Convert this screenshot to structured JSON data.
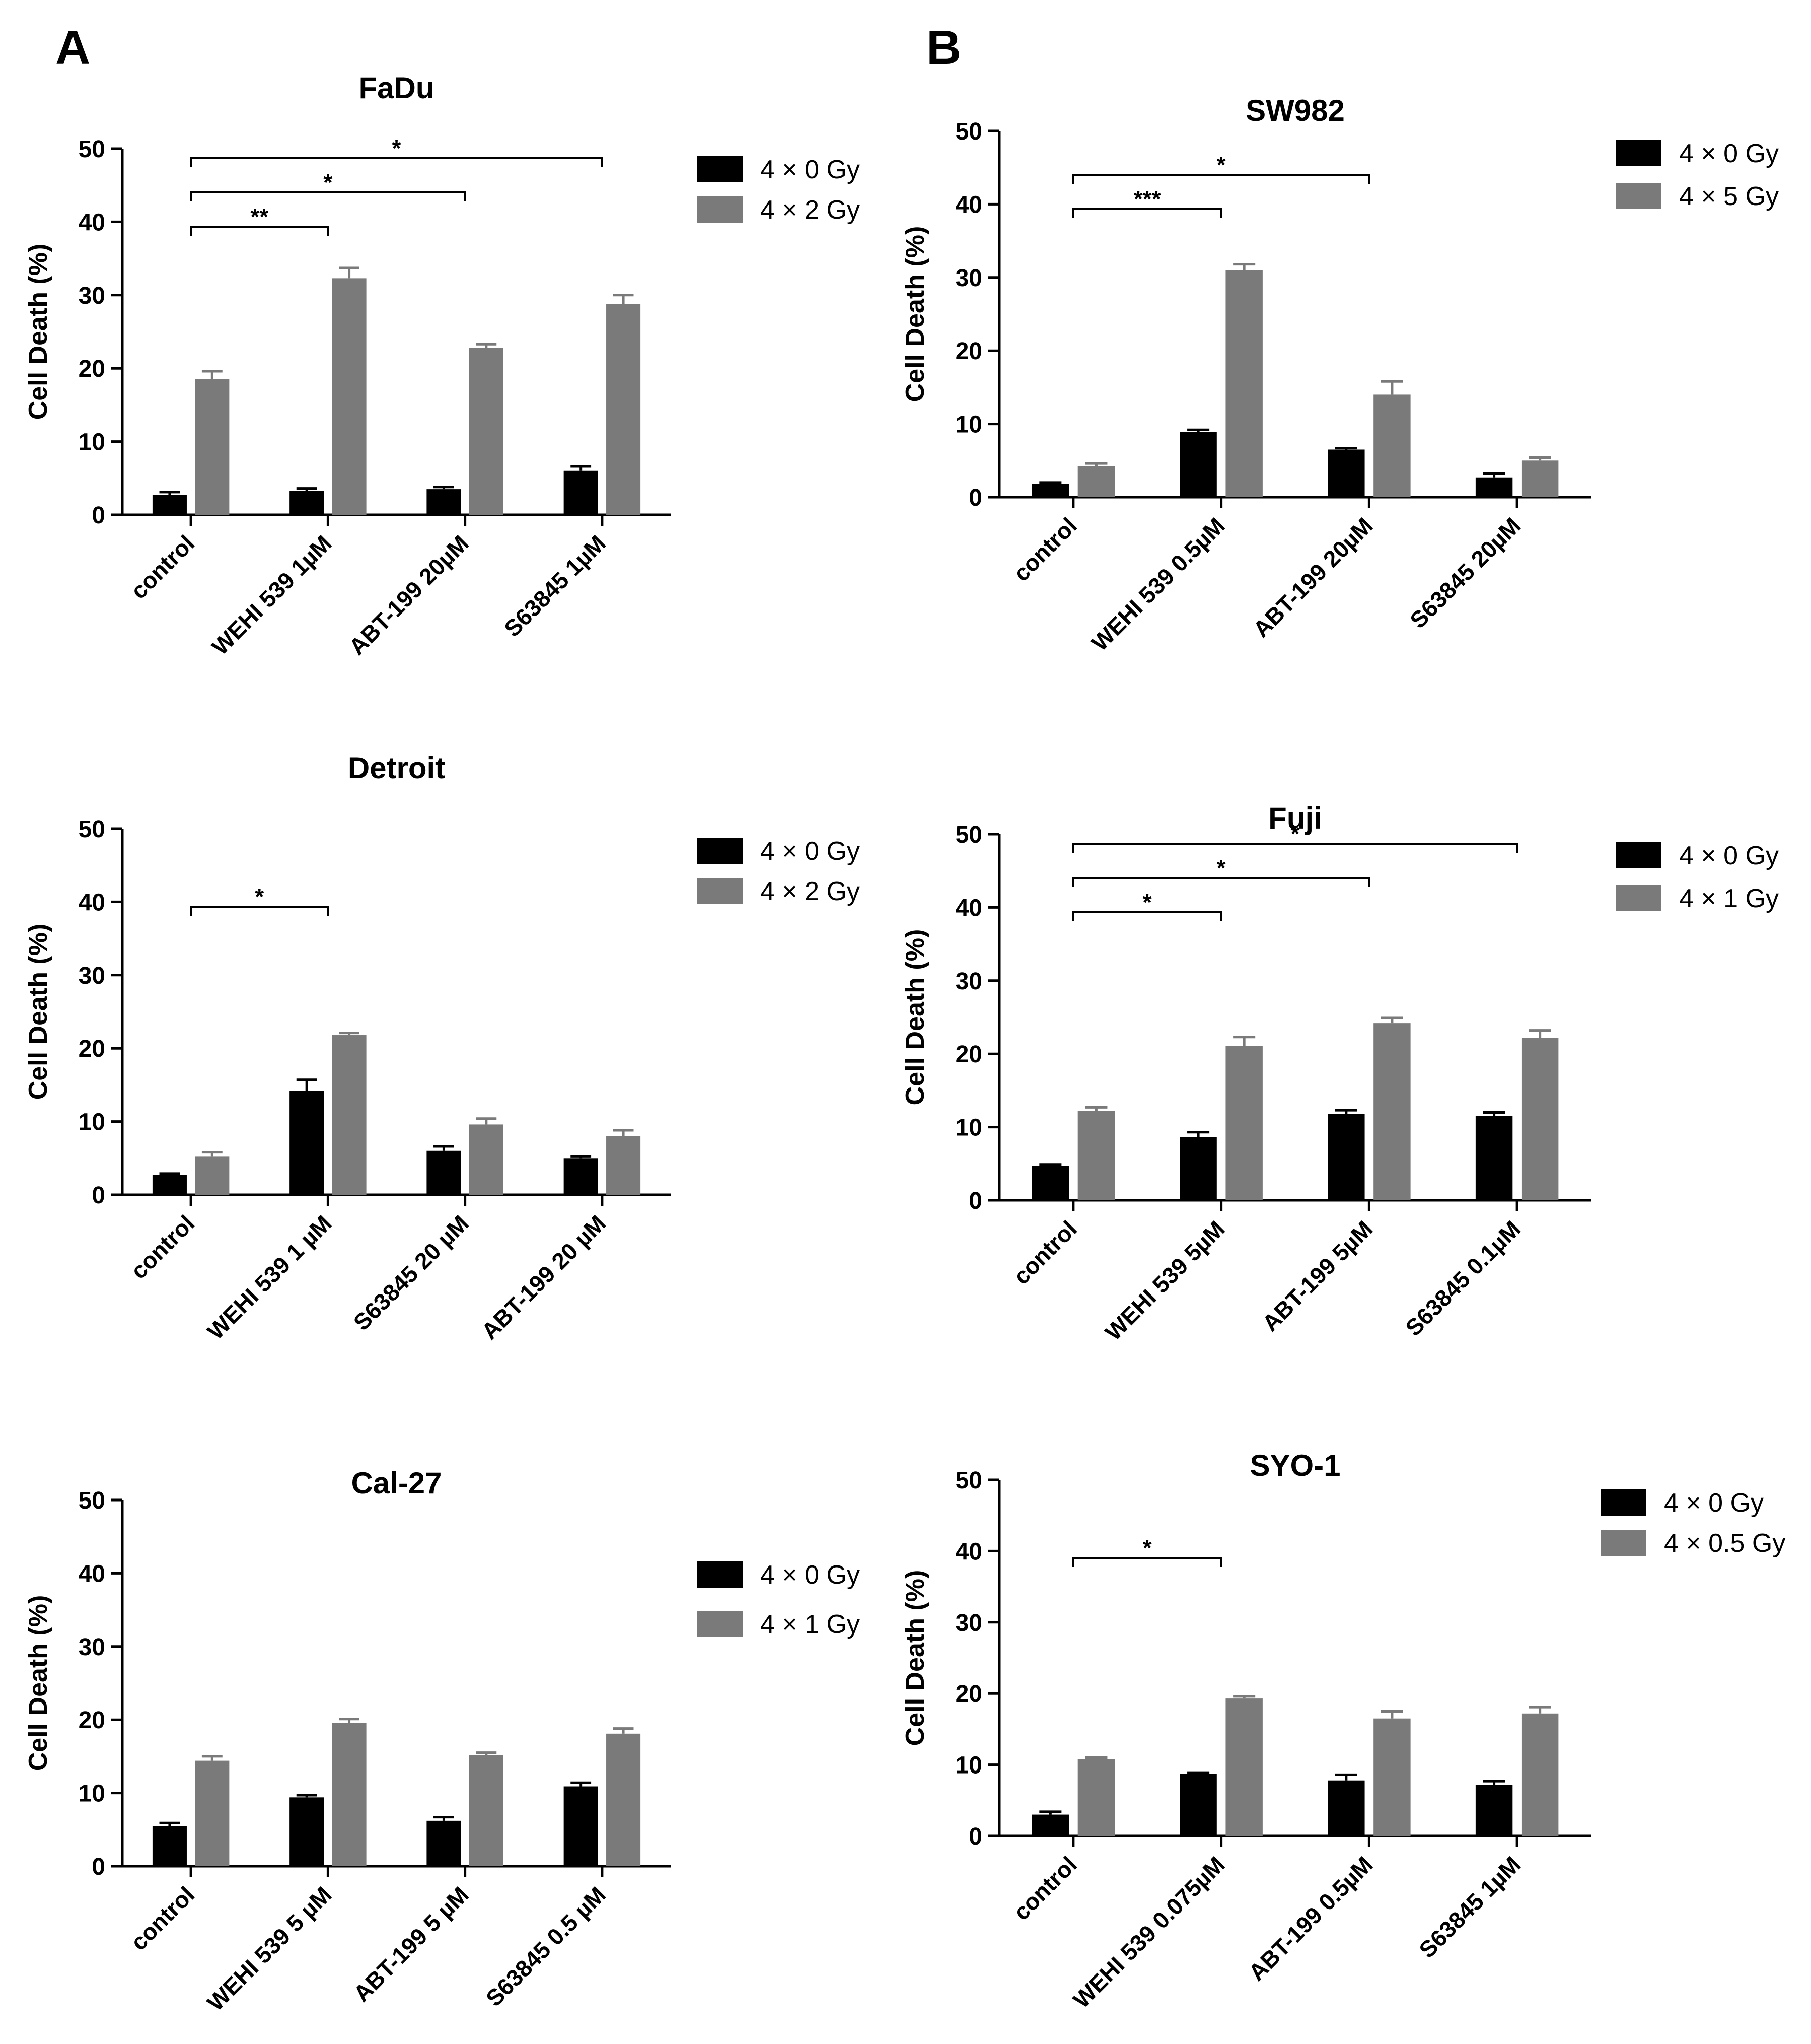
{
  "panel_labels": [
    "A",
    "B"
  ],
  "colors": {
    "dark": "#000000",
    "gray": "#7a7a7a",
    "axis": "#000000"
  },
  "chart_data": [
    {
      "panel": "A",
      "type": "bar",
      "title": "FaDu",
      "ylabel": "Cell Death (%)",
      "xlabel": "",
      "ylim": [
        0,
        50
      ],
      "yticks": [
        0,
        10,
        20,
        30,
        40,
        50
      ],
      "categories": [
        "control",
        "WEHI 539 1µM",
        "ABT-199 20µM",
        "S63845 1µM"
      ],
      "series": [
        {
          "name": "4 × 0 Gy",
          "color": "#000000",
          "values": [
            2.7,
            3.3,
            3.5,
            6.0
          ],
          "errors": [
            0.4,
            0.3,
            0.3,
            0.6
          ]
        },
        {
          "name": "4 × 2 Gy",
          "color": "#7a7a7a",
          "values": [
            18.5,
            32.3,
            22.8,
            28.8
          ],
          "errors": [
            1.1,
            1.4,
            0.5,
            1.2
          ]
        }
      ],
      "significance": [
        {
          "from": 0,
          "to": 1,
          "label": "**"
        },
        {
          "from": 0,
          "to": 2,
          "label": "*"
        },
        {
          "from": 0,
          "to": 3,
          "label": "*"
        }
      ]
    },
    {
      "panel": "B",
      "type": "bar",
      "title": "SW982",
      "ylabel": "Cell Death (%)",
      "xlabel": "",
      "ylim": [
        0,
        50
      ],
      "yticks": [
        0,
        10,
        20,
        30,
        40,
        50
      ],
      "categories": [
        "control",
        "WEHI 539 0.5µM",
        "ABT-199 20µM",
        "S63845 20µM"
      ],
      "series": [
        {
          "name": "4 × 0 Gy",
          "color": "#000000",
          "values": [
            1.8,
            8.9,
            6.5,
            2.7
          ],
          "errors": [
            0.2,
            0.3,
            0.2,
            0.5
          ]
        },
        {
          "name": "4 × 5 Gy",
          "color": "#7a7a7a",
          "values": [
            4.2,
            31.0,
            14.0,
            5.0
          ],
          "errors": [
            0.4,
            0.8,
            1.8,
            0.4
          ]
        }
      ],
      "significance": [
        {
          "from": 0,
          "to": 1,
          "label": "***"
        },
        {
          "from": 0,
          "to": 2,
          "label": "*"
        }
      ]
    },
    {
      "panel": "A",
      "type": "bar",
      "title": "Detroit",
      "ylabel": "Cell Death (%)",
      "xlabel": "",
      "ylim": [
        0,
        50
      ],
      "yticks": [
        0,
        10,
        20,
        30,
        40,
        50
      ],
      "categories": [
        "control",
        "WEHI 539 1 µM",
        "S63845 20 µM",
        "ABT-199 20 µM"
      ],
      "series": [
        {
          "name": "4 × 0 Gy",
          "color": "#000000",
          "values": [
            2.7,
            14.2,
            6.0,
            5.0
          ],
          "errors": [
            0.2,
            1.5,
            0.6,
            0.2
          ]
        },
        {
          "name": "4 × 2 Gy",
          "color": "#7a7a7a",
          "values": [
            5.2,
            21.8,
            9.6,
            8.0
          ],
          "errors": [
            0.6,
            0.3,
            0.8,
            0.8
          ]
        }
      ],
      "significance": [
        {
          "from": 0,
          "to": 1,
          "label": "*"
        }
      ]
    },
    {
      "panel": "B",
      "type": "bar",
      "title": "Fuji",
      "ylabel": "Cell Death (%)",
      "xlabel": "",
      "ylim": [
        0,
        50
      ],
      "yticks": [
        0,
        10,
        20,
        30,
        40,
        50
      ],
      "categories": [
        "control",
        "WEHI 539 5µM",
        "ABT-199 5µM",
        "S63845 0.1µM"
      ],
      "series": [
        {
          "name": "4 × 0 Gy",
          "color": "#000000",
          "values": [
            4.7,
            8.6,
            11.8,
            11.5
          ],
          "errors": [
            0.2,
            0.7,
            0.5,
            0.5
          ]
        },
        {
          "name": "4 × 1 Gy",
          "color": "#7a7a7a",
          "values": [
            12.2,
            21.1,
            24.2,
            22.2
          ],
          "errors": [
            0.5,
            1.2,
            0.7,
            1.0
          ]
        }
      ],
      "significance": [
        {
          "from": 0,
          "to": 1,
          "label": "*"
        },
        {
          "from": 0,
          "to": 2,
          "label": "*"
        },
        {
          "from": 0,
          "to": 3,
          "label": "*"
        }
      ]
    },
    {
      "panel": "A",
      "type": "bar",
      "title": "Cal-27",
      "ylabel": "Cell Death (%)",
      "xlabel": "",
      "ylim": [
        0,
        50
      ],
      "yticks": [
        0,
        10,
        20,
        30,
        40,
        50
      ],
      "categories": [
        "control",
        "WEHI 539 5 µM",
        "ABT-199 5 µM",
        "S63845 0.5 µM"
      ],
      "series": [
        {
          "name": "4 × 0 Gy",
          "color": "#000000",
          "values": [
            5.5,
            9.4,
            6.2,
            10.9
          ],
          "errors": [
            0.4,
            0.3,
            0.5,
            0.5
          ]
        },
        {
          "name": "4 × 1 Gy",
          "color": "#7a7a7a",
          "values": [
            14.4,
            19.6,
            15.2,
            18.1
          ],
          "errors": [
            0.6,
            0.5,
            0.3,
            0.7
          ]
        }
      ],
      "significance": []
    },
    {
      "panel": "B",
      "type": "bar",
      "title": "SYO-1",
      "ylabel": "Cell Death (%)",
      "xlabel": "",
      "ylim": [
        0,
        50
      ],
      "yticks": [
        0,
        10,
        20,
        30,
        40,
        50
      ],
      "categories": [
        "control",
        "WEHI 539 0.075µM",
        "ABT-199 0.5µM",
        "S63845 1µM"
      ],
      "series": [
        {
          "name": "4 × 0 Gy",
          "color": "#000000",
          "values": [
            3.0,
            8.7,
            7.8,
            7.2
          ],
          "errors": [
            0.4,
            0.2,
            0.8,
            0.5
          ]
        },
        {
          "name": "4 × 0.5 Gy",
          "color": "#7a7a7a",
          "values": [
            10.8,
            19.3,
            16.5,
            17.2
          ],
          "errors": [
            0.2,
            0.3,
            1.0,
            0.9
          ]
        }
      ],
      "significance": [
        {
          "from": 0,
          "to": 1,
          "label": "*"
        }
      ]
    }
  ]
}
